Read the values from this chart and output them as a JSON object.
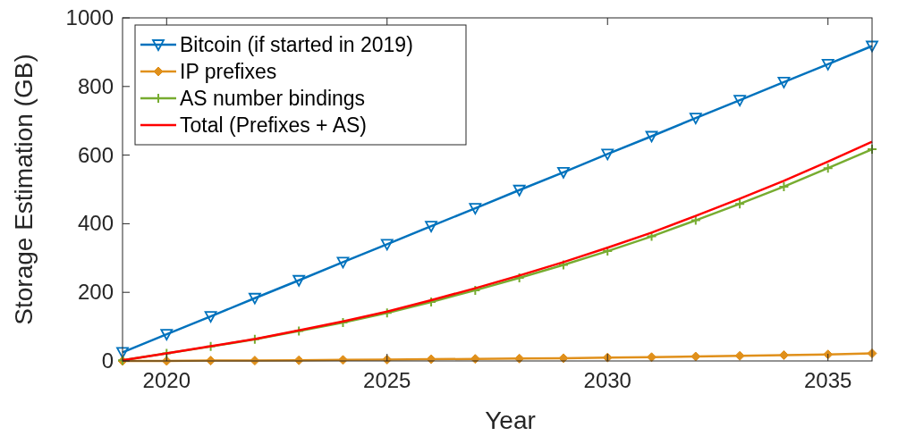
{
  "chart_data": {
    "type": "line",
    "xlabel": "Year",
    "ylabel": "Storage Estimation (GB)",
    "x": [
      2019,
      2020,
      2021,
      2022,
      2023,
      2024,
      2025,
      2026,
      2027,
      2028,
      2029,
      2030,
      2031,
      2032,
      2033,
      2034,
      2035,
      2036
    ],
    "xlim": [
      2019,
      2036
    ],
    "xticks": [
      2020,
      2025,
      2030,
      2035
    ],
    "ylim": [
      0,
      1000
    ],
    "yticks": [
      0,
      200,
      400,
      600,
      800,
      1000
    ],
    "grid": false,
    "legend": "top left",
    "series": [
      {
        "name": "Bitcoin (if started in 2019)",
        "color": "#0072bd",
        "marker": "triangle",
        "values": [
          25,
          78,
          130,
          183,
          235,
          288,
          340,
          393,
          445,
          498,
          550,
          603,
          655,
          708,
          760,
          813,
          865,
          918
        ]
      },
      {
        "name": "IP prefixes",
        "color": "#e0901b",
        "marker": "diamond",
        "values": [
          0,
          0,
          1,
          1,
          2,
          3,
          4,
          5,
          6,
          7,
          8,
          10,
          11,
          13,
          15,
          17,
          19,
          22
        ]
      },
      {
        "name": "AS number bindings",
        "color": "#77ac30",
        "marker": "cross",
        "values": [
          2,
          22,
          42,
          63,
          87,
          112,
          140,
          172,
          206,
          242,
          280,
          320,
          363,
          410,
          458,
          508,
          562,
          617
        ]
      },
      {
        "name": "Total (Prefixes + AS)",
        "color": "#ff0000",
        "marker": "none",
        "values": [
          2,
          22,
          43,
          64,
          89,
          115,
          144,
          177,
          212,
          249,
          288,
          330,
          374,
          423,
          473,
          525,
          581,
          639
        ]
      }
    ]
  }
}
